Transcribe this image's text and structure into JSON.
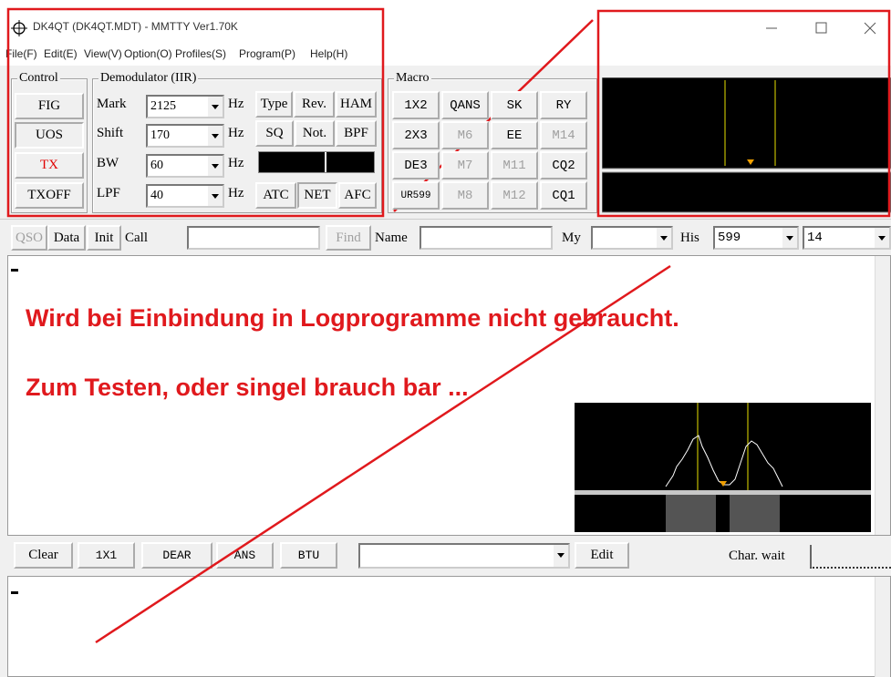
{
  "window": {
    "title": "DK4QT (DK4QT.MDT) - MMTTY Ver1.70K"
  },
  "menu": [
    "File(F)",
    "Edit(E)",
    "View(V)",
    "Option(O)",
    "Profiles(S)",
    "Program(P)",
    "Help(H)"
  ],
  "control": {
    "label": "Control",
    "buttons": [
      "FIG",
      "UOS",
      "TX",
      "TXOFF"
    ]
  },
  "demodulator": {
    "label": "Demodulator (IIR)",
    "rows": [
      {
        "label": "Mark",
        "value": "2125",
        "unit": "Hz"
      },
      {
        "label": "Shift",
        "value": "170",
        "unit": "Hz"
      },
      {
        "label": "BW",
        "value": "60",
        "unit": "Hz"
      },
      {
        "label": "LPF",
        "value": "40",
        "unit": "Hz"
      }
    ],
    "buttons": [
      "Type",
      "Rev.",
      "HAM",
      "SQ",
      "Not.",
      "BPF",
      "ATC",
      "NET",
      "AFC"
    ]
  },
  "macro": {
    "label": "Macro",
    "buttons": [
      "1X2",
      "QANS",
      "SK",
      "RY",
      "2X3",
      "M6",
      "EE",
      "M14",
      "DE3",
      "M7",
      "M11",
      "CQ2",
      "UR599",
      "M8",
      "M12",
      "CQ1"
    ]
  },
  "qso_bar": {
    "buttons": [
      "QSO",
      "Data",
      "Init"
    ],
    "call_label": "Call",
    "find": "Find",
    "name_label": "Name",
    "my_label": "My",
    "his_label": "His",
    "his_value": "599",
    "his_extra": "14"
  },
  "annotations": [
    "Wird bei Einbindung in Logprogramme nicht gebraucht.",
    "Zum Testen, oder singel brauch bar ..."
  ],
  "tx_bar": {
    "buttons": [
      "Clear",
      "1X1",
      "DEAR",
      "ANS",
      "BTU"
    ],
    "edit": "Edit",
    "char_wait": "Char. wait"
  }
}
